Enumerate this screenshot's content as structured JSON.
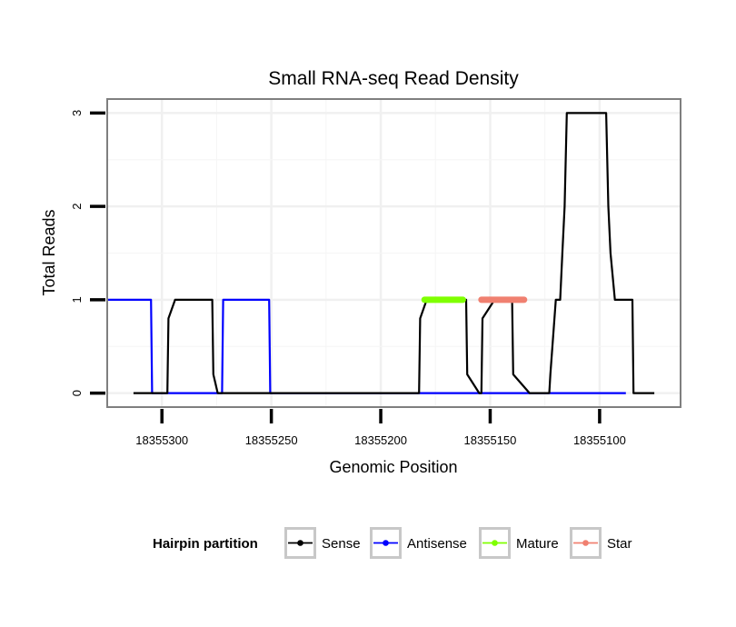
{
  "chart_data": {
    "type": "line",
    "title": "Small RNA-seq Read Density",
    "xlabel": "Genomic Position",
    "ylabel": "Total Reads",
    "x_reversed": true,
    "xlim": [
      18355325,
      18355063
    ],
    "ylim": [
      -0.15,
      3.15
    ],
    "x_ticks": [
      18355300,
      18355250,
      18355200,
      18355150,
      18355100
    ],
    "x_tick_labels": [
      "18355300",
      "18355250",
      "18355200",
      "18355150",
      "18355100"
    ],
    "y_ticks": [
      0,
      1,
      2,
      3
    ],
    "y_tick_labels": [
      "0",
      "1",
      "2",
      "3"
    ],
    "grid": true,
    "legend": {
      "title": "Hairpin partition",
      "position": "bottom",
      "entries": [
        "Sense",
        "Antisense",
        "Mature",
        "Star"
      ]
    },
    "series": [
      {
        "name": "Sense",
        "color": "#000000",
        "x": [
          18355313,
          18355298.5,
          18355297.5,
          18355297,
          18355294,
          18355278,
          18355277,
          18355276.5,
          18355274.5,
          18355183.5,
          18355182.5,
          18355182,
          18355179,
          18355162,
          18355161,
          18355160.5,
          18355155,
          18355154,
          18355153.5,
          18355148,
          18355141,
          18355140,
          18355139.5,
          18355132,
          18355124,
          18355123,
          18355122.5,
          18355120,
          18355118,
          18355117,
          18355116,
          18355115,
          18355100,
          18355098,
          18355097,
          18355096,
          18355095,
          18355093,
          18355092,
          18355091,
          18355090,
          18355086,
          18355085,
          18355084.5,
          18355075
        ],
        "y": [
          0,
          0,
          0,
          0.8,
          1,
          1,
          1,
          0.2,
          0,
          0,
          0,
          0.8,
          1,
          1,
          1,
          0.2,
          0,
          0,
          0.8,
          1,
          1,
          1,
          0.2,
          0,
          0,
          0,
          0.2,
          1,
          1,
          1.5,
          2,
          3,
          3,
          3,
          3,
          2,
          1.5,
          1,
          1,
          1,
          1,
          1,
          1,
          0,
          0
        ]
      },
      {
        "name": "Antisense",
        "color": "#0000ff",
        "x": [
          18355325,
          18355306,
          18355305,
          18355304.5,
          18355272.5,
          18355272,
          18355271,
          18355252,
          18355251,
          18355250.5,
          18355088
        ],
        "y": [
          1,
          1,
          1,
          0,
          0,
          1,
          1,
          1,
          1,
          0,
          0
        ]
      },
      {
        "name": "Mature",
        "color": "#7fff00",
        "x": [
          18355180,
          18355162.5
        ],
        "y": [
          1,
          1
        ]
      },
      {
        "name": "Star",
        "color": "#f08070",
        "x": [
          18355154,
          18355134.5
        ],
        "y": [
          1,
          1
        ]
      }
    ]
  }
}
